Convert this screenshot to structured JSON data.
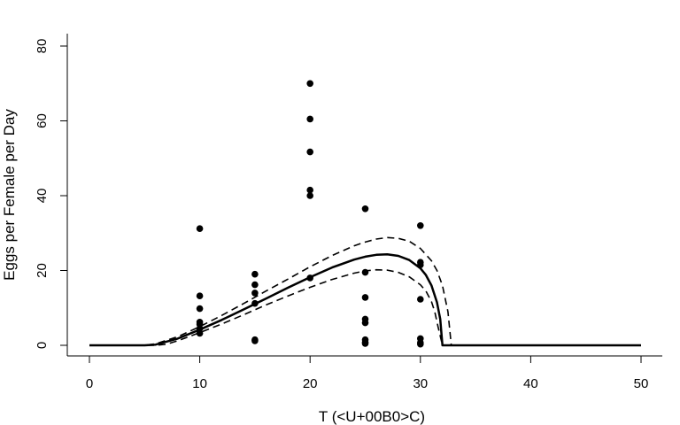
{
  "chart_data": {
    "type": "scatter",
    "title": "",
    "xlabel": "T (<U+00B0>C)",
    "ylabel": "Eggs per Female per Day",
    "xlim": [
      0,
      50
    ],
    "ylim": [
      0,
      80
    ],
    "xticks": [
      0,
      10,
      20,
      30,
      40,
      50
    ],
    "yticks": [
      0,
      20,
      40,
      60,
      80
    ],
    "grid": false,
    "legend": "none",
    "points": {
      "x": [
        10,
        10,
        10,
        10,
        10,
        10,
        10,
        15,
        15,
        15,
        15,
        15,
        15,
        20,
        20,
        20,
        20,
        20,
        20,
        25,
        25,
        25,
        25,
        25,
        25,
        25,
        25,
        30,
        30,
        30,
        30,
        30,
        30,
        30
      ],
      "y": [
        31.2,
        13.2,
        9.8,
        6.2,
        5.6,
        4.5,
        3.2,
        19.0,
        16.2,
        14.0,
        11.2,
        1.5,
        1.2,
        70.0,
        60.5,
        51.7,
        41.5,
        40.0,
        18.0,
        36.5,
        19.5,
        12.8,
        7.0,
        6.0,
        1.5,
        0.8,
        0.5,
        32.0,
        22.2,
        21.5,
        12.3,
        1.8,
        0.7,
        0.3
      ]
    },
    "series": [
      {
        "style": "solid",
        "x": [
          0,
          5,
          6,
          8,
          10,
          12,
          14,
          16,
          18,
          20,
          22,
          24,
          25,
          26,
          27,
          28,
          29,
          30,
          30.5,
          31,
          31.5,
          31.8,
          32,
          32.5,
          35,
          40,
          45,
          50
        ],
        "y": [
          0,
          0,
          0.2,
          1.8,
          4.2,
          6.8,
          9.6,
          12.5,
          15.4,
          18.2,
          20.8,
          22.9,
          23.7,
          24.2,
          24.3,
          23.9,
          22.8,
          20.6,
          18.8,
          16.0,
          11.5,
          7.0,
          0,
          0,
          0,
          0,
          0,
          0
        ]
      },
      {
        "style": "dashed",
        "x": [
          0,
          5,
          6,
          8,
          10,
          12,
          14,
          16,
          18,
          20,
          22,
          24,
          25,
          26,
          27,
          28,
          29,
          30,
          31,
          31.5,
          32,
          32.5,
          32.8,
          33,
          35,
          40,
          45,
          50
        ],
        "y": [
          0,
          0,
          0.4,
          2.3,
          5.0,
          8.0,
          11.2,
          14.5,
          17.7,
          21.0,
          24.0,
          26.6,
          27.6,
          28.4,
          28.8,
          28.6,
          27.8,
          25.9,
          22.6,
          20.0,
          16.0,
          9.0,
          0,
          0,
          0,
          0,
          0,
          0
        ]
      },
      {
        "style": "dashed",
        "x": [
          0,
          6,
          7,
          8,
          10,
          12,
          14,
          16,
          18,
          20,
          22,
          24,
          25,
          26,
          27,
          28,
          29,
          30,
          30.5,
          31,
          31.3,
          31.6,
          32,
          35,
          40,
          45,
          50
        ],
        "y": [
          0,
          0,
          0.3,
          1.2,
          3.4,
          5.7,
          8.2,
          10.8,
          13.2,
          15.5,
          17.6,
          19.3,
          19.9,
          20.2,
          20.1,
          19.5,
          18.3,
          16.2,
          14.5,
          11.7,
          9.0,
          5.0,
          0,
          0,
          0,
          0,
          0
        ]
      }
    ]
  }
}
